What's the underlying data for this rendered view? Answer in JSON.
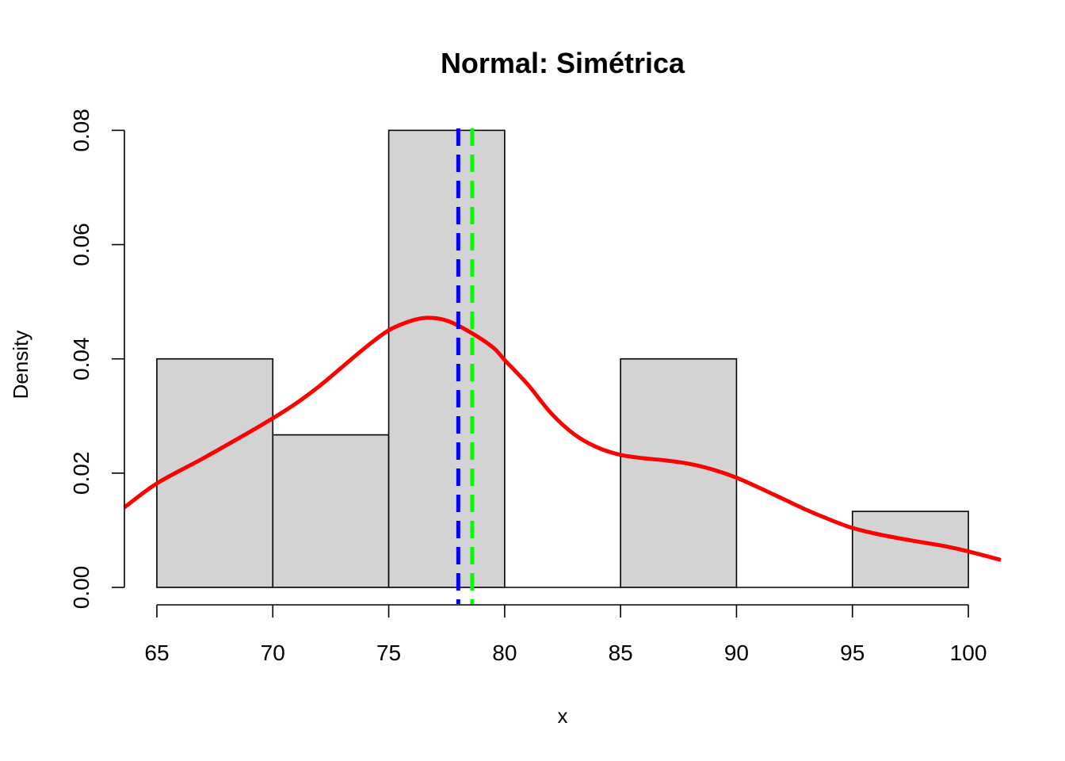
{
  "chart_data": {
    "type": "histogram",
    "title": "Normal: Simétrica",
    "xlabel": "x",
    "ylabel": "Density",
    "xlim": [
      63.6,
      101.4
    ],
    "ylim": [
      0,
      0.082
    ],
    "x_ticks": [
      "65",
      "70",
      "75",
      "80",
      "85",
      "90",
      "95",
      "100"
    ],
    "y_ticks": [
      "0.00",
      "0.02",
      "0.04",
      "0.06",
      "0.08"
    ],
    "bins": [
      {
        "from": 65,
        "to": 70,
        "density": 0.04
      },
      {
        "from": 70,
        "to": 75,
        "density": 0.0267
      },
      {
        "from": 75,
        "to": 80,
        "density": 0.08
      },
      {
        "from": 80,
        "to": 85,
        "density": 0.0
      },
      {
        "from": 85,
        "to": 90,
        "density": 0.04
      },
      {
        "from": 90,
        "to": 95,
        "density": 0.0
      },
      {
        "from": 95,
        "to": 100,
        "density": 0.0133
      }
    ],
    "density_curve": {
      "color": "#ff0000",
      "x": [
        63.6,
        65,
        67,
        69,
        70,
        71,
        72,
        73,
        74,
        75,
        76,
        76.7,
        77.5,
        78.5,
        79.5,
        80,
        81,
        82,
        83,
        84,
        85,
        86,
        87,
        88,
        89,
        90,
        91,
        92,
        93,
        94,
        95,
        96,
        97,
        98,
        99,
        100,
        101.4
      ],
      "y": [
        0.014,
        0.0182,
        0.0226,
        0.0272,
        0.0296,
        0.0322,
        0.0352,
        0.0386,
        0.042,
        0.045,
        0.0467,
        0.0472,
        0.0467,
        0.0447,
        0.042,
        0.0398,
        0.0355,
        0.0305,
        0.0268,
        0.0245,
        0.0232,
        0.0226,
        0.0222,
        0.0216,
        0.0206,
        0.0192,
        0.0174,
        0.0155,
        0.0136,
        0.0119,
        0.0104,
        0.0094,
        0.0086,
        0.0079,
        0.0072,
        0.0063,
        0.0048
      ]
    },
    "vlines": [
      {
        "x": 78.0,
        "color": "#0000ff",
        "style": "dashed"
      },
      {
        "x": 78.6,
        "color": "#00ff00",
        "style": "dashed"
      }
    ],
    "bar_fill": "#d3d3d3"
  }
}
